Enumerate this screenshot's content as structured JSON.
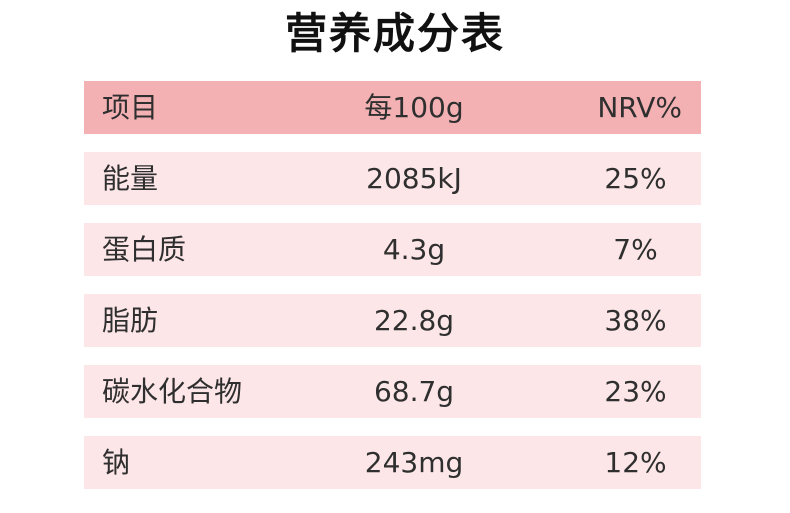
{
  "title": "营养成分表",
  "header": {
    "item": "项目",
    "per100g": "每100g",
    "nrv": "NRV%"
  },
  "rows": [
    {
      "item": "能量",
      "per100g": "2085kJ",
      "nrv": "25%"
    },
    {
      "item": "蛋白质",
      "per100g": "4.3g",
      "nrv": "7%"
    },
    {
      "item": "脂肪",
      "per100g": "22.8g",
      "nrv": "38%"
    },
    {
      "item": "碳水化合物",
      "per100g": "68.7g",
      "nrv": "23%"
    },
    {
      "item": "钠",
      "per100g": "243mg",
      "nrv": "12%"
    }
  ],
  "colors": {
    "header_bg": "#f4b1b4",
    "row_bg": "#fce6e8",
    "title": "#111111",
    "text": "#2f2f2f"
  }
}
